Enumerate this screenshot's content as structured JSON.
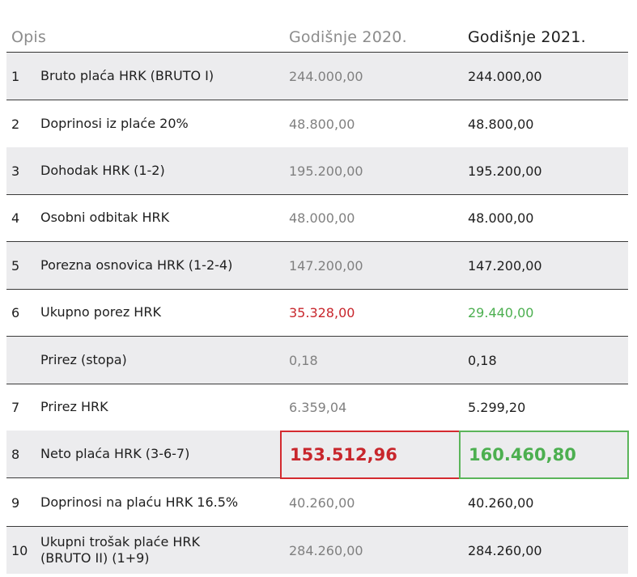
{
  "header": {
    "opis": "Opis",
    "col_2020": "Godišnje 2020.",
    "col_2021": "Godišnje 2021."
  },
  "rows": [
    {
      "num": "1",
      "desc": "Bruto plaća HRK (BRUTO I)",
      "v2020": "244.000,00",
      "v2021": "244.000,00"
    },
    {
      "num": "2",
      "desc": "Doprinosi iz plaće 20%",
      "v2020": "48.800,00",
      "v2021": "48.800,00"
    },
    {
      "num": "3",
      "desc": "Dohodak HRK (1-2)",
      "v2020": "195.200,00",
      "v2021": "195.200,00"
    },
    {
      "num": "4",
      "desc": "Osobni odbitak HRK",
      "v2020": "48.000,00",
      "v2021": "48.000,00"
    },
    {
      "num": "5",
      "desc": "Porezna osnovica HRK (1-2-4)",
      "v2020": "147.200,00",
      "v2021": "147.200,00"
    },
    {
      "num": "6",
      "desc": "Ukupno porez HRK",
      "v2020": "35.328,00",
      "v2021": "29.440,00"
    },
    {
      "num": "",
      "desc": "Prirez (stopa)",
      "v2020": "0,18",
      "v2021": "0,18"
    },
    {
      "num": "7",
      "desc": "Prirez HRK",
      "v2020": "6.359,04",
      "v2021": "5.299,20"
    },
    {
      "num": "8",
      "desc": "Neto plaća HRK (3-6-7)",
      "v2020": "153.512,96",
      "v2021": "160.460,80"
    },
    {
      "num": "9",
      "desc": "Doprinosi na plaću HRK 16.5%",
      "v2020": "40.260,00",
      "v2021": "40.260,00"
    },
    {
      "num": "10",
      "desc": "Ukupni trošak plaće HRK (BRUTO II) (1+9)",
      "v2020": "284.260,00",
      "v2021": "284.260,00"
    }
  ],
  "colors": {
    "decrease_2020": "#c8262c",
    "increase_2021": "#4caf50",
    "row_shade": "#ececee"
  }
}
